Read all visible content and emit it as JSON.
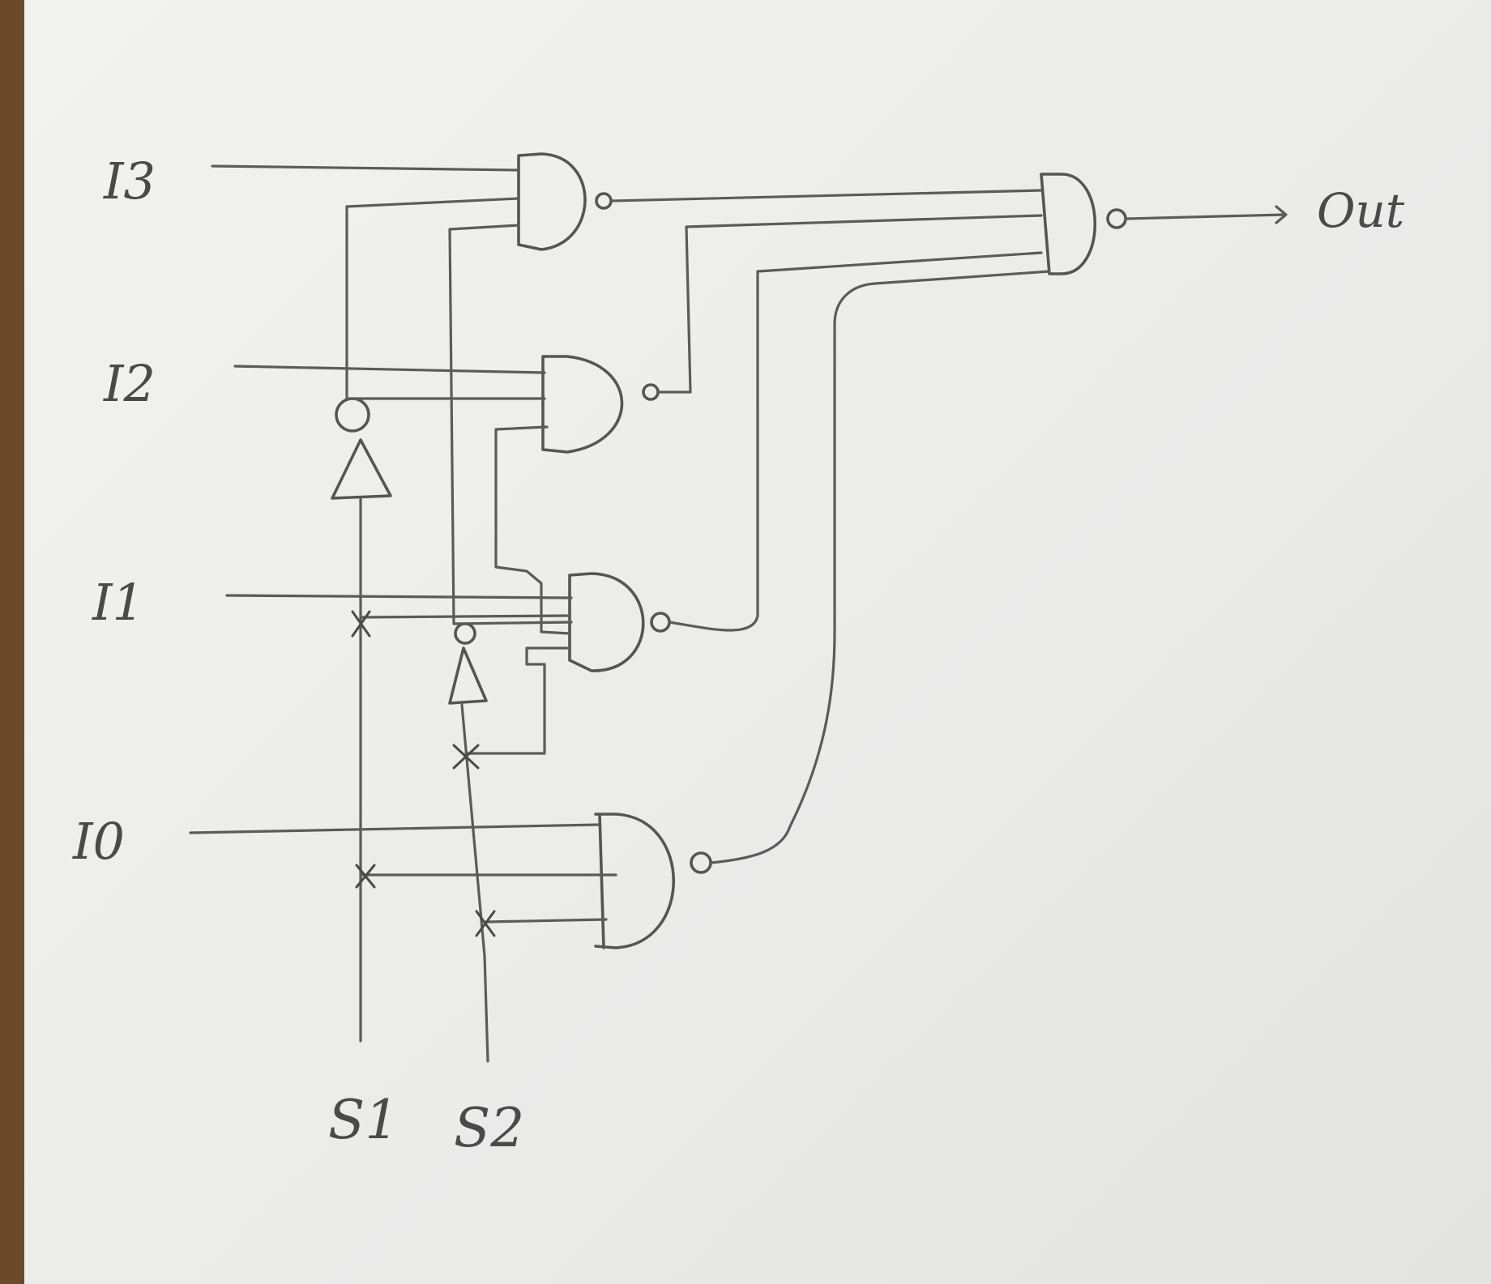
{
  "diagram": {
    "inputs": {
      "i3": "I3",
      "i2": "I2",
      "i1": "I1",
      "i0": "I0"
    },
    "selects": {
      "s1": "S1",
      "s2": "S2"
    },
    "output": "Out"
  }
}
